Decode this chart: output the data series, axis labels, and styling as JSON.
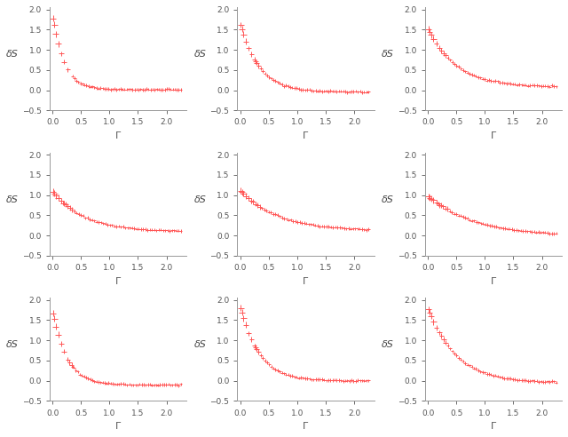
{
  "nrows": 3,
  "ncols": 3,
  "xlim": [
    -0.05,
    2.35
  ],
  "ylim": [
    -0.5,
    2.05
  ],
  "xlabel": "Γ",
  "xticks": [
    0,
    0.5,
    1,
    1.5,
    2
  ],
  "yticks": [
    -0.5,
    0,
    0.5,
    1,
    1.5,
    2
  ],
  "marker_color": "#FF5555",
  "figsize": [
    6.4,
    4.92
  ],
  "dpi": 100,
  "background_color": "#FFFFFF",
  "subplot_configs": [
    {
      "a": 1.85,
      "b": 5.0,
      "c": 0.02,
      "n_sparse": 12,
      "n_dense": 60,
      "x_sparse_end": 0.35
    },
    {
      "a": 1.7,
      "b": 3.0,
      "c": -0.04,
      "n_sparse": 10,
      "n_dense": 60,
      "x_sparse_end": 0.25
    },
    {
      "a": 1.45,
      "b": 2.0,
      "c": 0.08,
      "n_sparse": 8,
      "n_dense": 60,
      "x_sparse_end": 0.2
    },
    {
      "a": 1.0,
      "b": 1.8,
      "c": 0.1,
      "n_sparse": 6,
      "n_dense": 60,
      "x_sparse_end": 0.15
    },
    {
      "a": 1.0,
      "b": 1.5,
      "c": 0.12,
      "n_sparse": 6,
      "n_dense": 60,
      "x_sparse_end": 0.15
    },
    {
      "a": 1.0,
      "b": 1.2,
      "c": -0.02,
      "n_sparse": 6,
      "n_dense": 60,
      "x_sparse_end": 0.15
    },
    {
      "a": 1.85,
      "b": 4.0,
      "c": -0.1,
      "n_sparse": 12,
      "n_dense": 60,
      "x_sparse_end": 0.3
    },
    {
      "a": 1.85,
      "b": 3.0,
      "c": 0.0,
      "n_sparse": 10,
      "n_dense": 60,
      "x_sparse_end": 0.25
    },
    {
      "a": 1.85,
      "b": 2.0,
      "c": -0.05,
      "n_sparse": 8,
      "n_dense": 60,
      "x_sparse_end": 0.2
    }
  ],
  "ylabel_labels": [
    "δS",
    "δS",
    "δS",
    "δS",
    "δS",
    "δS",
    "δS",
    "δS",
    "δS"
  ]
}
